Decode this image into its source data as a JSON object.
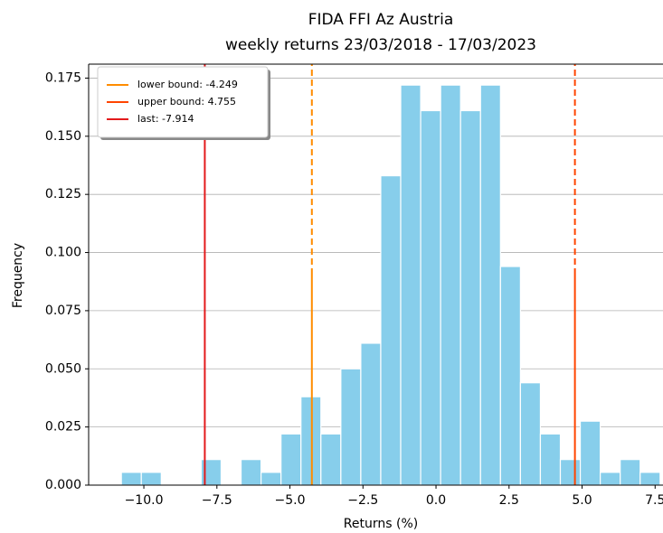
{
  "chart_data": {
    "type": "histogram",
    "title": "FIDA FFI Az Austria",
    "subtitle": "weekly returns 23/03/2018 - 17/03/2023",
    "x_label": "Returns (%)",
    "y_label": "Frequency",
    "bins": [
      -10.77,
      -10.087,
      -9.404,
      -8.721,
      -8.038,
      -7.355,
      -6.672,
      -5.989,
      -5.306,
      -4.623,
      -3.94,
      -3.257,
      -2.574,
      -1.891,
      -1.208,
      -0.525,
      0.158,
      0.841,
      1.524,
      2.207,
      2.89,
      3.573,
      4.256,
      4.939,
      5.622,
      6.305,
      6.988,
      7.671
    ],
    "values": [
      0.0055,
      0.0055,
      0,
      0,
      0.011,
      0,
      0.011,
      0.0055,
      0.022,
      0.038,
      0.022,
      0.05,
      0.061,
      0.133,
      0.172,
      0.161,
      0.172,
      0.161,
      0.172,
      0.094,
      0.044,
      0.022,
      0.011,
      0.0275,
      0.0055,
      0.011,
      0.0055
    ],
    "color": "#87ceeb",
    "xlim": [
      -11.89,
      7.77
    ],
    "ylim": [
      0,
      0.181
    ],
    "xticks": [
      {
        "value": -10,
        "label": "−10.0"
      },
      {
        "value": -7.5,
        "label": "−7.5"
      },
      {
        "value": -5,
        "label": "−5.0"
      },
      {
        "value": -2.5,
        "label": "−2.5"
      },
      {
        "value": 0,
        "label": "0.0"
      },
      {
        "value": 2.5,
        "label": "2.5"
      },
      {
        "value": 5,
        "label": "5.0"
      },
      {
        "value": 7.5,
        "label": "7.5"
      }
    ],
    "yticks": [
      {
        "value": 0,
        "label": "0.000"
      },
      {
        "value": 0.025,
        "label": "0.025"
      },
      {
        "value": 0.05,
        "label": "0.050"
      },
      {
        "value": 0.075,
        "label": "0.075"
      },
      {
        "value": 0.1,
        "label": "0.100"
      },
      {
        "value": 0.125,
        "label": "0.125"
      },
      {
        "value": 0.15,
        "label": "0.150"
      },
      {
        "value": 0.175,
        "label": "0.175"
      }
    ],
    "grid": true,
    "legend": "upper left",
    "vlines": [
      {
        "name": "lower bound: -4.249",
        "value": -4.249,
        "color": "#ff8c00",
        "dashed": true
      },
      {
        "name": "upper bound: 4.755",
        "value": 4.755,
        "color": "#ff4500",
        "dashed": true
      },
      {
        "name": "last: -7.914",
        "value": -7.914,
        "color": "#e31a1c",
        "dashed": false
      }
    ]
  }
}
